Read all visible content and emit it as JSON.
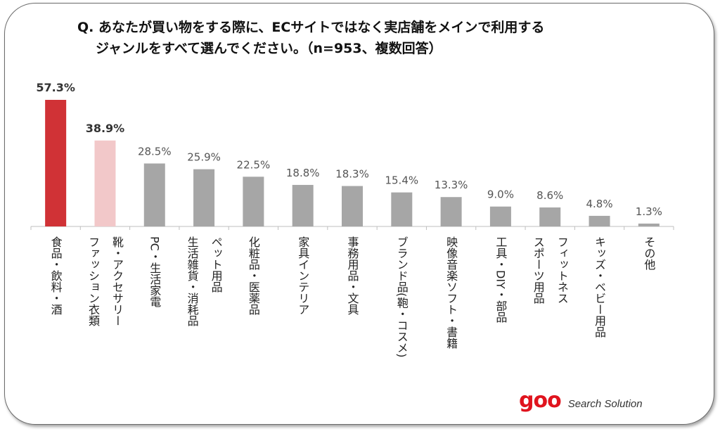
{
  "title": {
    "line1": "Q. あなたが買い物をする際に、ECサイトではなく実店舗をメインで利用する",
    "line2": "ジャンルをすべて選んでください。（n=953、複数回答）"
  },
  "logo": {
    "mark": "goo",
    "sub": "Search Solution"
  },
  "colors": {
    "first": "#d03236",
    "second": "#f2c8c9",
    "other": "#a6a6a6",
    "axis": "#bfbfbf"
  },
  "chart_data": {
    "type": "bar",
    "title": "Q. あなたが買い物をする際に、ECサイトではなく実店舗をメインで利用するジャンルをすべて選んでください。（n=953、複数回答）",
    "categories": [
      "食品・飲料・酒",
      "靴・アクセサリー ファッション衣類",
      "PC・生活家電",
      "ペット用品 生活雑貨・消耗品",
      "化粧品・医薬品",
      "家具インテリア",
      "事務用品・文具",
      "ブランド品（鞄・コスメ）",
      "映像音楽ソフト・書籍",
      "工具・DIY・部品",
      "フィットネス スポーツ用品",
      "キッズ・ベビー用品",
      "その他"
    ],
    "category_columns": [
      [
        "食品・飲料・酒"
      ],
      [
        "靴・アクセサリー",
        "ファッション衣類"
      ],
      [
        "PC・生活家電"
      ],
      [
        "ペット用品",
        "生活雑貨・消耗品"
      ],
      [
        "化粧品・医薬品"
      ],
      [
        "家具インテリア"
      ],
      [
        "事務用品・文具"
      ],
      [
        "ブランド品(鞄・コスメ)"
      ],
      [
        "映像音楽ソフト・書籍"
      ],
      [
        "工具・DIY・部品"
      ],
      [
        "フィットネス",
        "スポーツ用品"
      ],
      [
        "キッズ・ベビー用品"
      ],
      [
        "その他"
      ]
    ],
    "values": [
      57.3,
      38.9,
      28.5,
      25.9,
      22.5,
      18.8,
      18.3,
      15.4,
      13.3,
      9.0,
      8.6,
      4.8,
      1.3
    ],
    "labels": [
      "57.3%",
      "38.9%",
      "28.5%",
      "25.9%",
      "22.5%",
      "18.8%",
      "18.3%",
      "15.4%",
      "13.3%",
      "9.0%",
      "8.6%",
      "4.8%",
      "1.3%"
    ],
    "unit": "%",
    "ylim": [
      0,
      57.3
    ],
    "grid": false,
    "legend": "none"
  }
}
